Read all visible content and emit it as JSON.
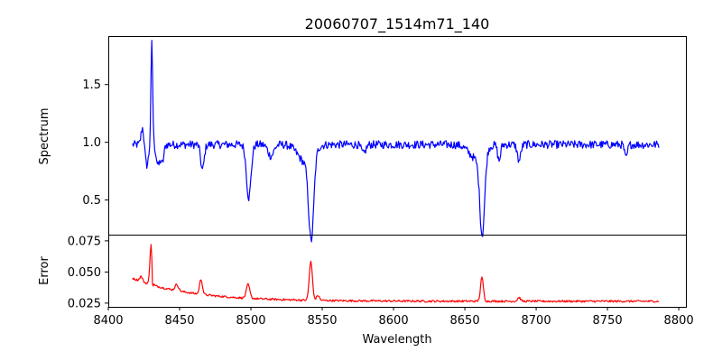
{
  "chart_data": [
    {
      "type": "line",
      "title": "20060707_1514m71_140",
      "xlabel": "",
      "ylabel": "Spectrum",
      "xlim": [
        8400,
        8805
      ],
      "ylim": [
        0.2,
        1.92
      ],
      "xticks_visible": false,
      "yticks": [
        0.5,
        1.0,
        1.5
      ],
      "ytick_labels": [
        "0.5",
        "1.0",
        "1.5"
      ],
      "grid": false,
      "series": [
        {
          "name": "spectrum",
          "color": "#0000ff",
          "x_start": 8417,
          "x_end": 8786,
          "continuum": 0.98,
          "noise": 0.035,
          "features": [
            {
              "center": 8430.5,
              "depth": -0.88,
              "width": 0.6
            },
            {
              "center": 8424,
              "depth": -0.15,
              "width": 1.0
            },
            {
              "center": 8427,
              "depth": 0.18,
              "width": 1.2
            },
            {
              "center": 8435,
              "depth": 0.18,
              "width": 1.3
            },
            {
              "center": 8438,
              "depth": 0.15,
              "width": 1.0
            },
            {
              "center": 8466,
              "depth": 0.22,
              "width": 1.2
            },
            {
              "center": 8498.5,
              "depth": 0.46,
              "width": 1.6
            },
            {
              "center": 8542.3,
              "depth": 0.73,
              "width": 1.8
            },
            {
              "center": 8538,
              "depth": 0.15,
              "width": 5.0
            },
            {
              "center": 8662.2,
              "depth": 0.7,
              "width": 1.7
            },
            {
              "center": 8658,
              "depth": 0.12,
              "width": 5.0
            },
            {
              "center": 8688,
              "depth": 0.14,
              "width": 1.2
            },
            {
              "center": 8514,
              "depth": 0.1,
              "width": 2.0
            },
            {
              "center": 8579,
              "depth": 0.08,
              "width": 1.5
            },
            {
              "center": 8674,
              "depth": 0.14,
              "width": 1.0
            },
            {
              "center": 8763,
              "depth": 0.12,
              "width": 1.0
            }
          ]
        }
      ]
    },
    {
      "type": "line",
      "title": "",
      "xlabel": "Wavelength",
      "ylabel": "Error",
      "xlim": [
        8400,
        8805
      ],
      "ylim": [
        0.022,
        0.08
      ],
      "xticks": [
        8400,
        8450,
        8500,
        8550,
        8600,
        8650,
        8700,
        8750,
        8800
      ],
      "xtick_labels": [
        "8400",
        "8450",
        "8500",
        "8550",
        "8600",
        "8650",
        "8700",
        "8750",
        "8800"
      ],
      "yticks": [
        0.025,
        0.05,
        0.075
      ],
      "ytick_labels": [
        "0.025",
        "0.050",
        "0.075"
      ],
      "grid": false,
      "series": [
        {
          "name": "error",
          "color": "#ff0000",
          "x_start": 8417,
          "x_end": 8786,
          "base_start": 0.045,
          "base_end": 0.0265,
          "base_decay": 40,
          "noise": 0.0008,
          "features": [
            {
              "center": 8430,
              "height": 0.033,
              "width": 0.8
            },
            {
              "center": 8431,
              "height": -0.014,
              "width": 0.4
            },
            {
              "center": 8423,
              "height": 0.004,
              "width": 1.0
            },
            {
              "center": 8448,
              "height": 0.005,
              "width": 1.2
            },
            {
              "center": 8465,
              "height": 0.012,
              "width": 1.0
            },
            {
              "center": 8498,
              "height": 0.011,
              "width": 1.2
            },
            {
              "center": 8542,
              "height": 0.031,
              "width": 1.1
            },
            {
              "center": 8547,
              "height": 0.004,
              "width": 1.0
            },
            {
              "center": 8662,
              "height": 0.019,
              "width": 1.0
            },
            {
              "center": 8688,
              "height": 0.003,
              "width": 1.0
            }
          ]
        }
      ]
    }
  ]
}
